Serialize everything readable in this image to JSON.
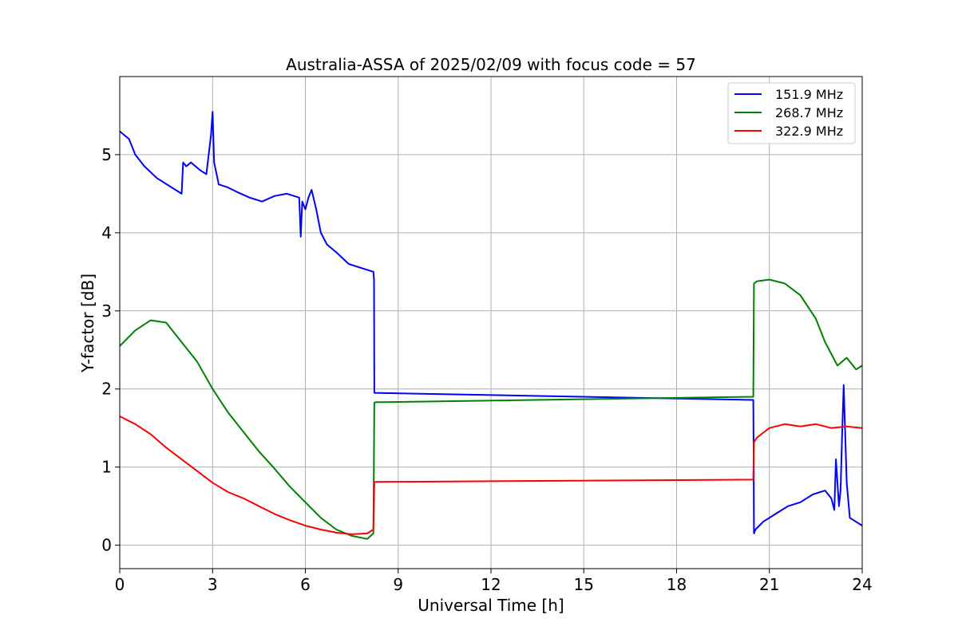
{
  "chart_data": {
    "type": "line",
    "title": "Australia-ASSA of 2025/02/09 with focus code = 57",
    "xlabel": "Universal Time [h]",
    "ylabel": "Y-factor [dB]",
    "xlim": [
      0,
      24
    ],
    "ylim": [
      -0.3,
      6.0
    ],
    "xticks": [
      0,
      3,
      6,
      9,
      12,
      15,
      18,
      21,
      24
    ],
    "yticks": [
      0,
      1,
      2,
      3,
      4,
      5
    ],
    "grid": true,
    "legend_position": "top-right",
    "series": [
      {
        "name": "151.9 MHz",
        "color": "#0000ff",
        "x": [
          0,
          0.3,
          0.5,
          0.8,
          1.2,
          1.6,
          2.0,
          2.05,
          2.15,
          2.3,
          2.6,
          2.8,
          2.95,
          3.0,
          3.05,
          3.2,
          3.5,
          3.8,
          4.2,
          4.6,
          5.0,
          5.4,
          5.8,
          5.85,
          5.9,
          6.0,
          6.1,
          6.2,
          6.35,
          6.5,
          6.7,
          7.0,
          7.4,
          7.8,
          8.2,
          8.22,
          8.23,
          20.48,
          20.49,
          20.5,
          20.55,
          20.8,
          21.2,
          21.6,
          22.0,
          22.4,
          22.8,
          23.0,
          23.1,
          23.15,
          23.25,
          23.3,
          23.35,
          23.4,
          23.5,
          23.6,
          24.0
        ],
        "y": [
          5.3,
          5.2,
          5.0,
          4.85,
          4.7,
          4.6,
          4.5,
          4.9,
          4.85,
          4.9,
          4.8,
          4.75,
          5.25,
          5.55,
          4.9,
          4.62,
          4.58,
          4.52,
          4.45,
          4.4,
          4.47,
          4.5,
          4.45,
          3.95,
          4.4,
          4.3,
          4.45,
          4.55,
          4.3,
          4.0,
          3.85,
          3.75,
          3.6,
          3.55,
          3.5,
          3.4,
          1.95,
          1.86,
          1.2,
          0.15,
          0.2,
          0.3,
          0.4,
          0.5,
          0.55,
          0.65,
          0.7,
          0.6,
          0.45,
          1.1,
          0.5,
          0.7,
          1.4,
          2.05,
          0.8,
          0.35,
          0.25
        ]
      },
      {
        "name": "268.7 MHz",
        "color": "#008000",
        "x": [
          0,
          0.5,
          1.0,
          1.5,
          2.0,
          2.5,
          3.0,
          3.5,
          4.0,
          4.5,
          5.0,
          5.5,
          6.0,
          6.5,
          7.0,
          7.5,
          8.0,
          8.2,
          8.23,
          8.25,
          20.48,
          20.5,
          20.6,
          21.0,
          21.5,
          22.0,
          22.5,
          22.8,
          23.2,
          23.5,
          23.8,
          24.0
        ],
        "y": [
          2.55,
          2.75,
          2.88,
          2.85,
          2.6,
          2.35,
          2.0,
          1.7,
          1.45,
          1.2,
          0.98,
          0.75,
          0.55,
          0.35,
          0.2,
          0.12,
          0.08,
          0.15,
          1.82,
          1.83,
          1.9,
          3.35,
          3.38,
          3.4,
          3.35,
          3.2,
          2.9,
          2.6,
          2.3,
          2.4,
          2.25,
          2.3
        ]
      },
      {
        "name": "322.9 MHz",
        "color": "#ff0000",
        "x": [
          0,
          0.5,
          1.0,
          1.5,
          2.0,
          2.5,
          3.0,
          3.5,
          4.0,
          4.5,
          5.0,
          5.5,
          6.0,
          6.5,
          7.0,
          7.5,
          8.0,
          8.2,
          8.23,
          8.25,
          20.48,
          20.5,
          20.6,
          21.0,
          21.5,
          22.0,
          22.5,
          23.0,
          23.5,
          24.0
        ],
        "y": [
          1.65,
          1.55,
          1.42,
          1.25,
          1.1,
          0.95,
          0.8,
          0.68,
          0.6,
          0.5,
          0.4,
          0.32,
          0.25,
          0.2,
          0.16,
          0.14,
          0.15,
          0.2,
          0.8,
          0.81,
          0.84,
          1.32,
          1.38,
          1.5,
          1.55,
          1.52,
          1.55,
          1.5,
          1.52,
          1.5
        ]
      }
    ]
  }
}
